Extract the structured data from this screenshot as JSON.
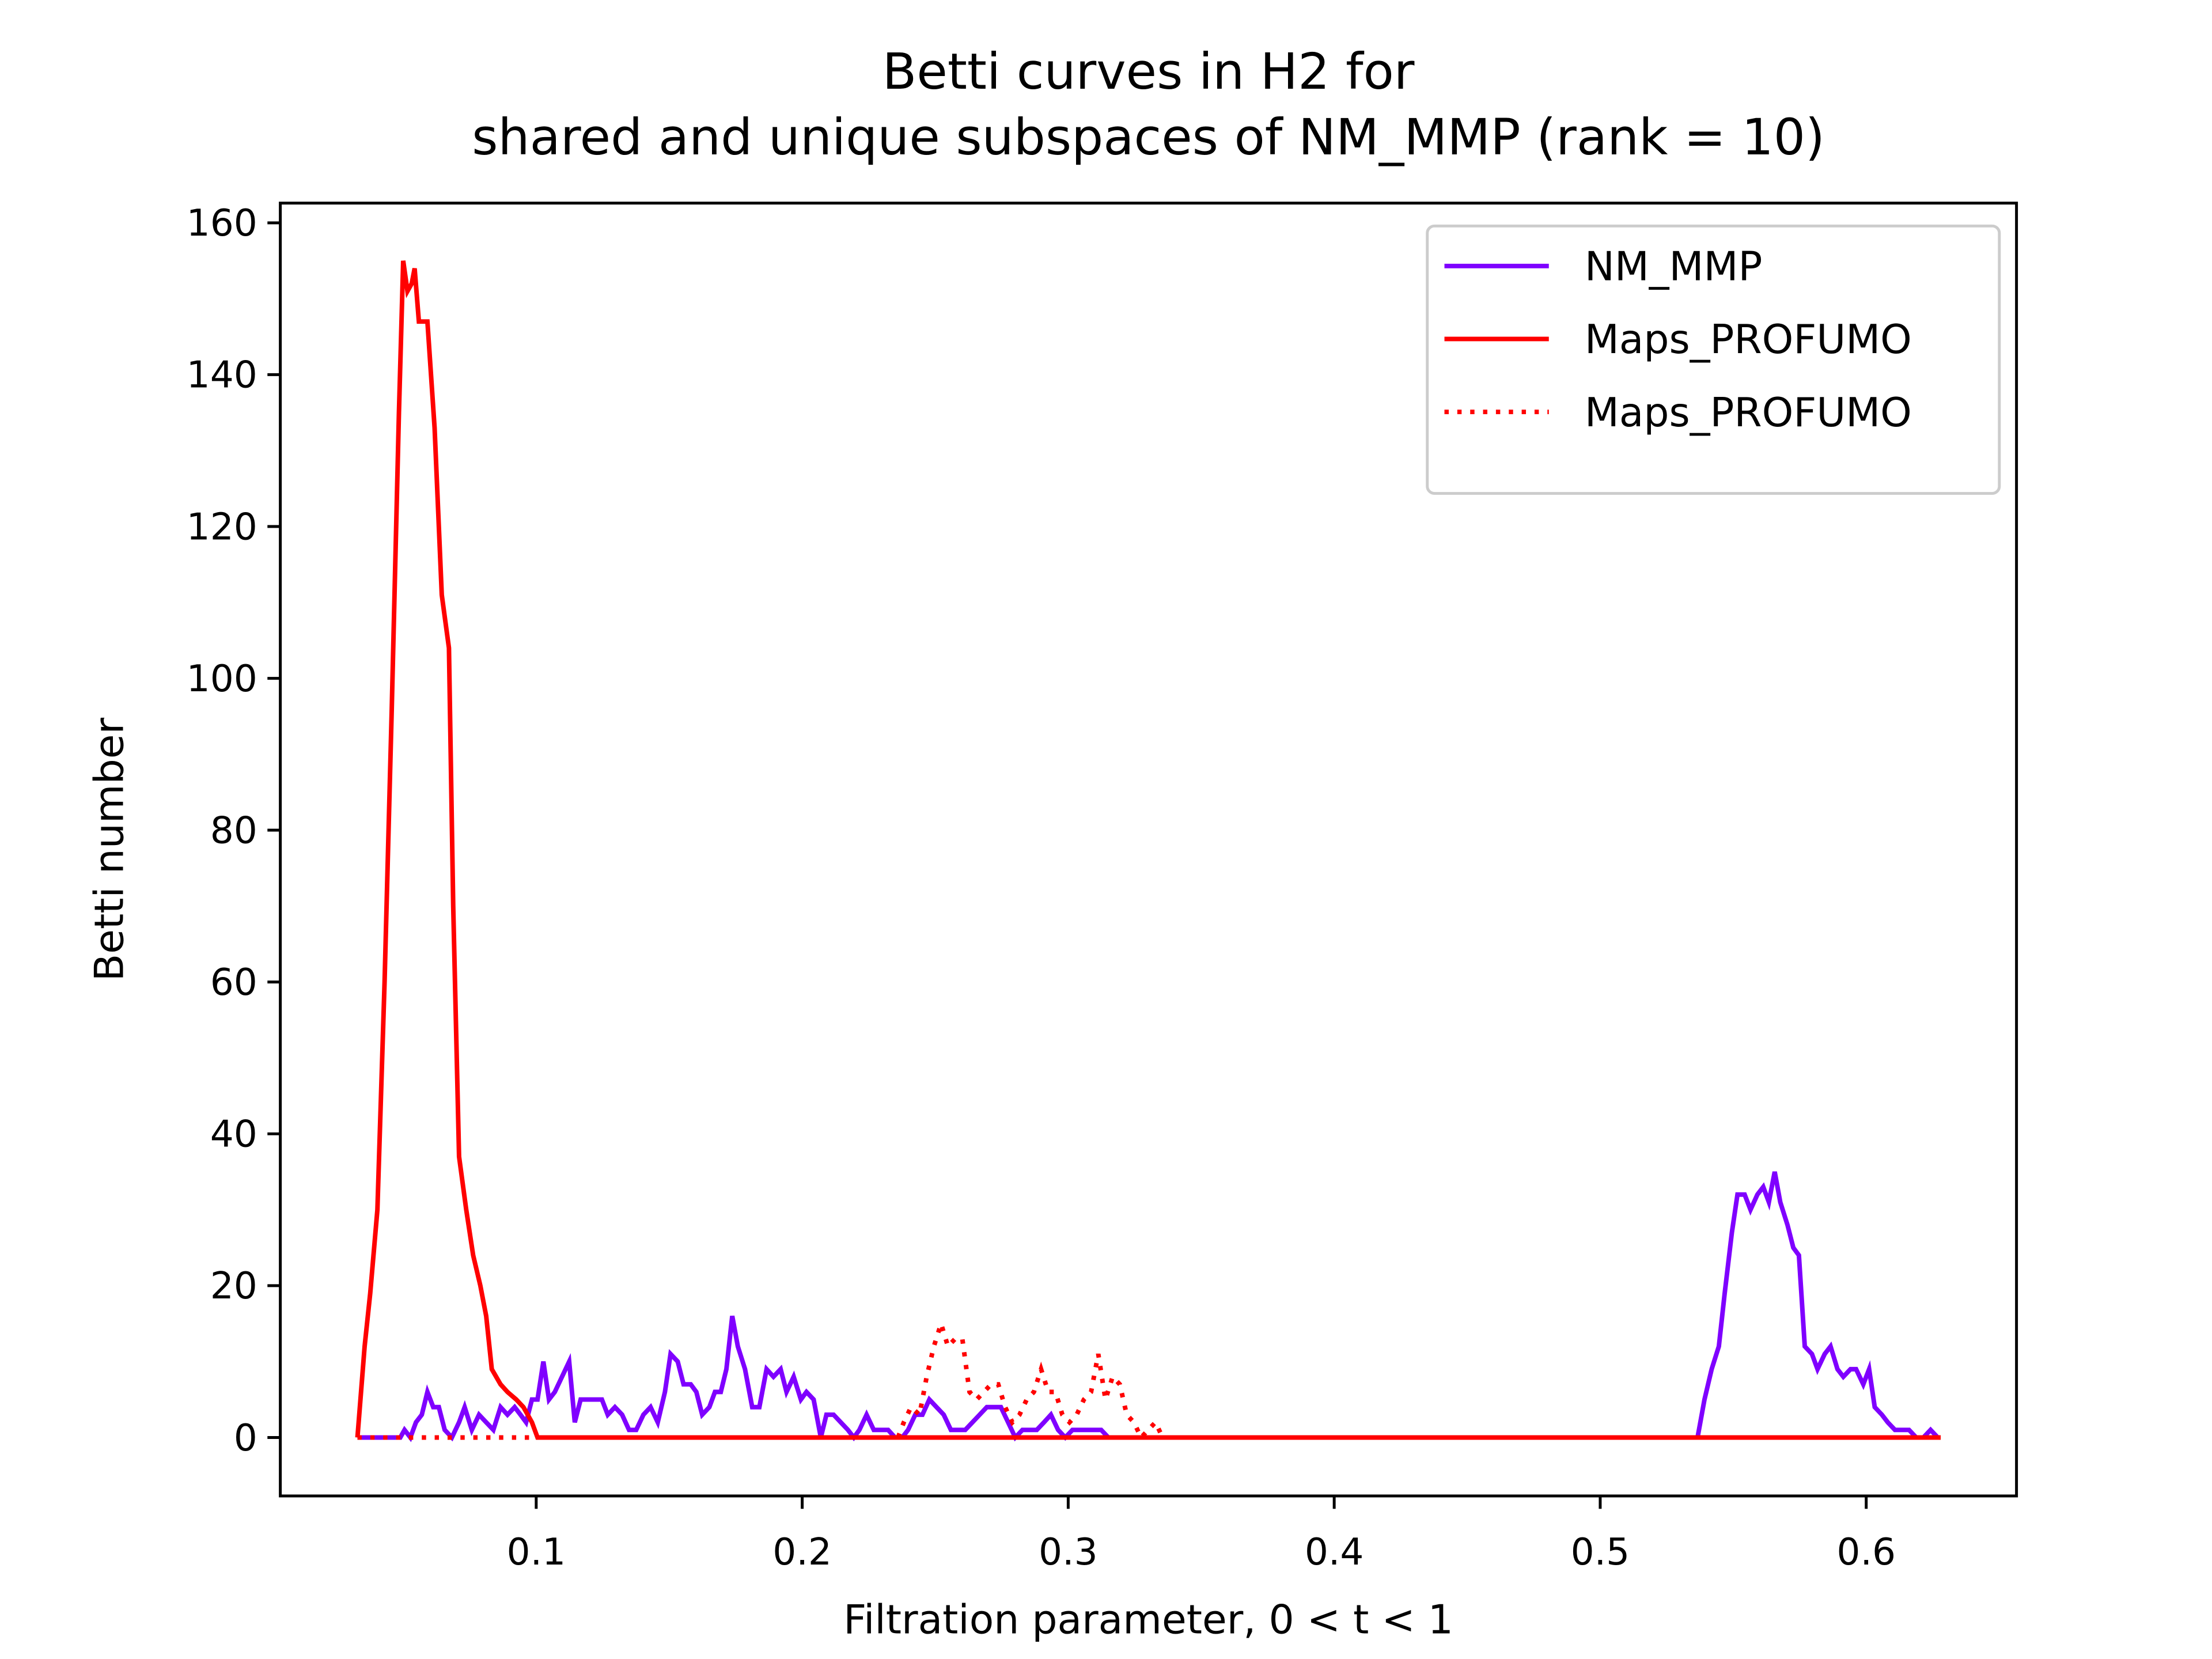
{
  "chart_data": {
    "type": "line",
    "title": [
      "Betti curves in H2 for",
      "shared and unique subspaces of NM_MMP (rank = 10)"
    ],
    "x_label": "Filtration parameter, 0 < t < 1",
    "y_label": "Betti number",
    "xlim": [
      0.0038,
      0.6565
    ],
    "ylim": [
      -7.7,
      162.6
    ],
    "xticks": [
      0.1,
      0.2,
      0.3,
      0.4,
      0.5,
      0.6
    ],
    "yticks": [
      0,
      20,
      40,
      60,
      80,
      100,
      120,
      140,
      160
    ],
    "grid": false,
    "legend": "upper right",
    "series": [
      {
        "name": "NM_MMP",
        "color": "#7f00ff",
        "linestyle": "solid",
        "x": [
          0.0328,
          0.0489,
          0.0505,
          0.0527,
          0.0548,
          0.057,
          0.0591,
          0.0613,
          0.0634,
          0.0656,
          0.0683,
          0.071,
          0.0731,
          0.0758,
          0.0785,
          0.0812,
          0.0839,
          0.0866,
          0.0892,
          0.0919,
          0.0941,
          0.0962,
          0.0984,
          0.1005,
          0.1027,
          0.1048,
          0.107,
          0.1097,
          0.1124,
          0.1145,
          0.1167,
          0.1215,
          0.1247,
          0.1269,
          0.1296,
          0.1323,
          0.1349,
          0.1376,
          0.1403,
          0.143,
          0.1457,
          0.1484,
          0.1505,
          0.1532,
          0.1554,
          0.1581,
          0.1602,
          0.1624,
          0.1651,
          0.1672,
          0.1694,
          0.1715,
          0.1737,
          0.1758,
          0.1785,
          0.1812,
          0.1839,
          0.1866,
          0.1892,
          0.1919,
          0.1941,
          0.1968,
          0.1995,
          0.2016,
          0.2043,
          0.207,
          0.2091,
          0.2118,
          0.2145,
          0.2172,
          0.2194,
          0.2215,
          0.2242,
          0.2269,
          0.2296,
          0.2323,
          0.2349,
          0.2376,
          0.2398,
          0.2425,
          0.2452,
          0.2478,
          0.2505,
          0.2532,
          0.2559,
          0.2586,
          0.2613,
          0.264,
          0.2667,
          0.2694,
          0.272,
          0.2747,
          0.2774,
          0.2801,
          0.2828,
          0.2855,
          0.2882,
          0.2909,
          0.2935,
          0.2962,
          0.2989,
          0.3016,
          0.3043,
          0.3097,
          0.3124,
          0.3151,
          0.5366,
          0.5392,
          0.5419,
          0.5446,
          0.5468,
          0.5495,
          0.5516,
          0.5543,
          0.5565,
          0.5591,
          0.5613,
          0.5634,
          0.5656,
          0.5677,
          0.5704,
          0.5726,
          0.5747,
          0.5769,
          0.5796,
          0.5817,
          0.5844,
          0.5866,
          0.5892,
          0.5914,
          0.5941,
          0.5962,
          0.5989,
          0.6011,
          0.6032,
          0.6059,
          0.6081,
          0.6108,
          0.6134,
          0.6161,
          0.6188,
          0.6215,
          0.6242,
          0.6269
        ],
        "values": [
          0,
          0,
          1,
          0,
          2,
          3,
          6,
          4,
          4,
          1,
          0,
          2,
          4,
          1,
          3,
          2,
          1,
          4,
          3,
          4,
          3,
          2,
          5,
          5,
          10,
          5,
          6,
          8,
          10,
          2,
          5,
          5,
          5,
          3,
          4,
          3,
          1,
          1,
          3,
          4,
          2,
          6,
          11,
          10,
          7,
          7,
          6,
          3,
          4,
          6,
          6,
          9,
          16,
          12,
          9,
          4,
          4,
          9,
          8,
          9,
          6,
          8,
          5,
          6,
          5,
          0,
          3,
          3,
          2,
          1,
          0,
          1,
          3,
          1,
          1,
          1,
          0,
          0,
          1,
          3,
          3,
          5,
          4,
          3,
          1,
          1,
          1,
          2,
          3,
          4,
          4,
          4,
          2,
          0,
          1,
          1,
          1,
          2,
          3,
          1,
          0,
          1,
          1,
          1,
          1,
          0,
          0,
          5,
          9,
          12,
          19,
          27,
          32,
          32,
          30,
          32,
          33,
          31,
          35,
          31,
          28,
          25,
          24,
          12,
          11,
          9,
          11,
          12,
          9,
          8,
          9,
          9,
          7,
          9,
          4,
          3,
          2,
          1,
          1,
          1,
          0,
          0,
          1,
          0
        ]
      },
      {
        "name": "Maps_PROFUMO",
        "color": "#ff0000",
        "linestyle": "solid",
        "x": [
          0.0328,
          0.0355,
          0.0376,
          0.0403,
          0.043,
          0.0457,
          0.0484,
          0.05,
          0.0516,
          0.0532,
          0.0543,
          0.0559,
          0.0591,
          0.0618,
          0.0645,
          0.0672,
          0.0688,
          0.071,
          0.0737,
          0.0763,
          0.079,
          0.0812,
          0.0833,
          0.0866,
          0.0892,
          0.0925,
          0.0952,
          0.0984,
          0.1005,
          0.628
        ],
        "values": [
          0,
          12,
          19,
          30,
          60,
          96,
          135,
          155,
          151,
          152,
          154,
          147,
          147,
          133,
          111,
          104,
          70,
          37,
          30,
          24,
          20,
          16,
          9,
          7,
          6,
          5,
          4,
          2,
          0,
          0
        ]
      },
      {
        "name": "Maps_PROFUMO",
        "color": "#ff0000",
        "linestyle": "dotted",
        "x": [
          0.0328,
          0.236,
          0.2382,
          0.2409,
          0.2441,
          0.2468,
          0.2495,
          0.2522,
          0.2548,
          0.2575,
          0.2602,
          0.2629,
          0.2656,
          0.2683,
          0.271,
          0.2737,
          0.2763,
          0.279,
          0.2817,
          0.2844,
          0.2871,
          0.2898,
          0.2925,
          0.2952,
          0.2978,
          0.3005,
          0.3032,
          0.3059,
          0.3086,
          0.3113,
          0.314,
          0.3167,
          0.3194,
          0.322,
          0.3247,
          0.3274,
          0.3301,
          0.3328,
          0.3355,
          0.628
        ],
        "values": [
          0,
          0,
          2,
          4,
          3,
          8,
          12,
          15,
          12,
          13,
          13,
          6,
          5,
          6,
          7,
          7,
          4,
          2,
          3,
          5,
          6,
          9,
          6,
          6,
          3,
          2,
          3,
          5,
          6,
          11,
          5,
          8,
          7,
          3,
          2,
          0,
          1,
          2,
          0,
          0
        ]
      }
    ]
  }
}
